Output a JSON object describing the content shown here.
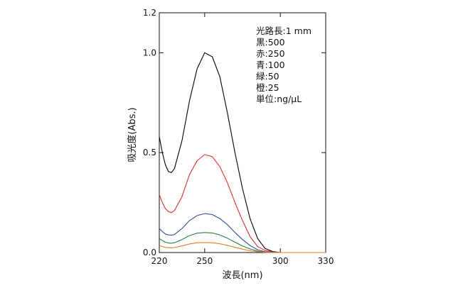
{
  "chart_data": {
    "type": "line",
    "title": "",
    "xlabel": "波長(nm)",
    "ylabel": "吸光度(Abs.)",
    "xlim": [
      220,
      330
    ],
    "ylim": [
      0,
      1.2
    ],
    "x_ticks": [
      220,
      250,
      300,
      330
    ],
    "y_ticks": [
      0.0,
      0.5,
      1.0,
      1.2
    ],
    "y_tick_labels": [
      "0.0",
      "0.5",
      "1.0",
      "1.2"
    ],
    "grid": false,
    "legend_position": "top-right",
    "annotation_lines": [
      "光路長:1 mm",
      "黒:500",
      "赤:250",
      "青:100",
      "緑:50",
      "橙:25",
      "単位:ng/μL"
    ],
    "x": [
      220,
      222,
      224,
      226,
      228,
      230,
      235,
      240,
      245,
      250,
      255,
      260,
      265,
      270,
      275,
      280,
      285,
      290,
      295,
      300,
      305,
      310,
      315,
      320,
      325,
      330
    ],
    "series": [
      {
        "color": "#000000",
        "values": [
          0.58,
          0.5,
          0.44,
          0.405,
          0.4,
          0.42,
          0.56,
          0.76,
          0.92,
          1.0,
          0.98,
          0.88,
          0.7,
          0.5,
          0.32,
          0.17,
          0.07,
          0.02,
          0.005,
          0.0,
          0.0,
          0.0,
          0.0,
          0.0,
          0.0,
          0.0
        ]
      },
      {
        "color": "#e03030",
        "values": [
          0.29,
          0.25,
          0.22,
          0.205,
          0.2,
          0.21,
          0.28,
          0.39,
          0.46,
          0.49,
          0.48,
          0.43,
          0.35,
          0.25,
          0.16,
          0.08,
          0.03,
          0.01,
          0.003,
          0.0,
          0.0,
          0.0,
          0.0,
          0.0,
          0.0,
          0.0
        ]
      },
      {
        "color": "#2e4fa0",
        "values": [
          0.12,
          0.105,
          0.093,
          0.088,
          0.087,
          0.09,
          0.12,
          0.16,
          0.185,
          0.195,
          0.19,
          0.17,
          0.14,
          0.1,
          0.065,
          0.035,
          0.014,
          0.004,
          0.001,
          0.0,
          0.0,
          0.0,
          0.0,
          0.0,
          0.0,
          0.0
        ]
      },
      {
        "color": "#2f7a3a",
        "values": [
          0.07,
          0.06,
          0.052,
          0.048,
          0.047,
          0.049,
          0.065,
          0.085,
          0.097,
          0.1,
          0.098,
          0.088,
          0.072,
          0.052,
          0.033,
          0.018,
          0.007,
          0.002,
          0.0,
          0.0,
          0.0,
          0.0,
          0.0,
          0.0,
          0.0,
          0.0
        ]
      },
      {
        "color": "#e07b22",
        "values": [
          0.035,
          0.03,
          0.026,
          0.024,
          0.024,
          0.025,
          0.033,
          0.043,
          0.049,
          0.05,
          0.049,
          0.044,
          0.036,
          0.026,
          0.017,
          0.009,
          0.004,
          0.001,
          0.0,
          0.0,
          0.0,
          0.0,
          0.0,
          0.0,
          0.0,
          0.0
        ]
      }
    ]
  }
}
